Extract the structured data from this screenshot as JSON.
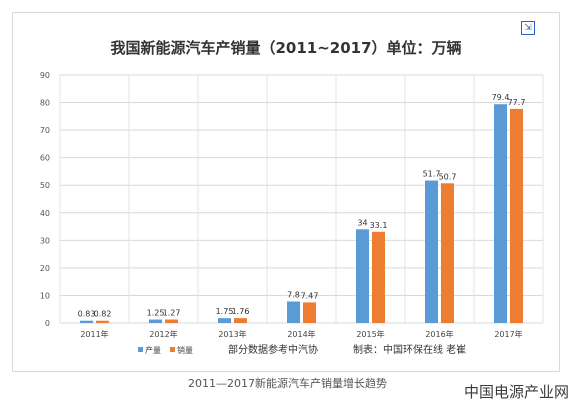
{
  "chart_data": {
    "type": "bar",
    "title": "我国新能源汽车产销量（2011~2017）单位：万辆",
    "categories": [
      "2011年",
      "2012年",
      "2013年",
      "2014年",
      "2015年",
      "2016年",
      "2017年"
    ],
    "series": [
      {
        "name": "产量",
        "values": [
          0.83,
          1.25,
          1.75,
          7.8,
          34,
          51.7,
          79.4
        ],
        "color": "#5b9bd5"
      },
      {
        "name": "销量",
        "values": [
          0.82,
          1.27,
          1.76,
          7.47,
          33.1,
          50.7,
          77.7
        ],
        "color": "#ed7d31"
      }
    ],
    "ylim": [
      0,
      90
    ],
    "yticks": [
      0,
      10,
      20,
      30,
      40,
      50,
      60,
      70,
      80,
      90
    ],
    "grid": true,
    "legend": "bottom-left",
    "data_labels": true
  },
  "notes": {
    "source": "部分数据参考中汽协",
    "author": "制表：中国环保在线 老崔"
  },
  "caption": "2011—2017新能源汽车产销量增长趋势",
  "watermark": "中国电源产业网",
  "expand_icon": "expand-icon"
}
